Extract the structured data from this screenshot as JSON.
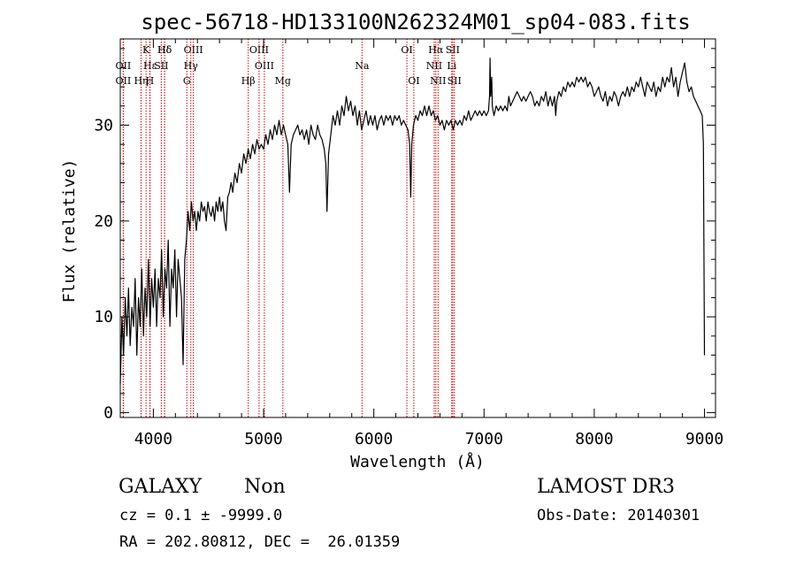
{
  "chart_data": {
    "type": "line",
    "title": "spec-56718-HD133100N262324M01_sp04-083.fits",
    "xlabel": "Wavelength (Å)",
    "ylabel": "Flux (relative)",
    "xlim": [
      3700,
      9100
    ],
    "ylim": [
      -0.5,
      39
    ],
    "xticks": [
      4000,
      5000,
      6000,
      7000,
      8000,
      9000
    ],
    "yticks": [
      0,
      10,
      20,
      30
    ],
    "grid": false,
    "series": [
      {
        "points": [
          [
            3700,
            3
          ],
          [
            3715,
            10
          ],
          [
            3730,
            6
          ],
          [
            3745,
            12
          ],
          [
            3760,
            8
          ],
          [
            3775,
            13
          ],
          [
            3790,
            7
          ],
          [
            3805,
            11
          ],
          [
            3820,
            9
          ],
          [
            3835,
            14
          ],
          [
            3850,
            6
          ],
          [
            3865,
            12
          ],
          [
            3880,
            9
          ],
          [
            3895,
            15
          ],
          [
            3910,
            8
          ],
          [
            3925,
            13
          ],
          [
            3940,
            10
          ],
          [
            3955,
            16
          ],
          [
            3970,
            9
          ],
          [
            3985,
            14
          ],
          [
            4000,
            11
          ],
          [
            4015,
            15
          ],
          [
            4030,
            9
          ],
          [
            4045,
            14
          ],
          [
            4060,
            12
          ],
          [
            4075,
            17
          ],
          [
            4090,
            10
          ],
          [
            4105,
            15
          ],
          [
            4120,
            13
          ],
          [
            4135,
            18
          ],
          [
            4150,
            9
          ],
          [
            4165,
            15
          ],
          [
            4180,
            13
          ],
          [
            4195,
            17
          ],
          [
            4210,
            10
          ],
          [
            4225,
            16
          ],
          [
            4240,
            14
          ],
          [
            4255,
            12
          ],
          [
            4270,
            5
          ],
          [
            4285,
            16
          ],
          [
            4300,
            18
          ],
          [
            4315,
            21
          ],
          [
            4330,
            19
          ],
          [
            4345,
            22
          ],
          [
            4360,
            20
          ],
          [
            4375,
            21
          ],
          [
            4390,
            19
          ],
          [
            4405,
            21
          ],
          [
            4420,
            20
          ],
          [
            4435,
            22
          ],
          [
            4450,
            21
          ],
          [
            4465,
            21.5
          ],
          [
            4480,
            20
          ],
          [
            4495,
            22
          ],
          [
            4510,
            21
          ],
          [
            4525,
            20.5
          ],
          [
            4540,
            21.5
          ],
          [
            4555,
            20
          ],
          [
            4570,
            22
          ],
          [
            4585,
            21
          ],
          [
            4600,
            22.5
          ],
          [
            4615,
            21
          ],
          [
            4630,
            22
          ],
          [
            4645,
            20
          ],
          [
            4660,
            19
          ],
          [
            4675,
            22.5
          ],
          [
            4690,
            23
          ],
          [
            4705,
            24
          ],
          [
            4720,
            23
          ],
          [
            4740,
            25
          ],
          [
            4760,
            24
          ],
          [
            4780,
            26
          ],
          [
            4800,
            25
          ],
          [
            4820,
            27
          ],
          [
            4840,
            26
          ],
          [
            4860,
            27.5
          ],
          [
            4880,
            26.5
          ],
          [
            4900,
            28
          ],
          [
            4920,
            27
          ],
          [
            4940,
            28.5
          ],
          [
            4960,
            27.5
          ],
          [
            4980,
            28
          ],
          [
            5000,
            27.5
          ],
          [
            5020,
            29
          ],
          [
            5040,
            28
          ],
          [
            5060,
            29.5
          ],
          [
            5080,
            28.5
          ],
          [
            5100,
            30
          ],
          [
            5120,
            29
          ],
          [
            5140,
            30.5
          ],
          [
            5160,
            29
          ],
          [
            5180,
            30
          ],
          [
            5200,
            29
          ],
          [
            5220,
            28
          ],
          [
            5235,
            23
          ],
          [
            5250,
            28
          ],
          [
            5270,
            29
          ],
          [
            5290,
            29.5
          ],
          [
            5310,
            30
          ],
          [
            5330,
            29
          ],
          [
            5350,
            29.5
          ],
          [
            5370,
            28.5
          ],
          [
            5390,
            29.5
          ],
          [
            5410,
            28
          ],
          [
            5430,
            30
          ],
          [
            5450,
            29
          ],
          [
            5470,
            28.5
          ],
          [
            5490,
            30
          ],
          [
            5510,
            29
          ],
          [
            5530,
            28.5
          ],
          [
            5550,
            27.5
          ],
          [
            5565,
            26
          ],
          [
            5575,
            21
          ],
          [
            5590,
            27
          ],
          [
            5610,
            29
          ],
          [
            5630,
            31
          ],
          [
            5650,
            30
          ],
          [
            5670,
            31.5
          ],
          [
            5690,
            30
          ],
          [
            5710,
            32
          ],
          [
            5730,
            31
          ],
          [
            5750,
            33
          ],
          [
            5770,
            31.5
          ],
          [
            5790,
            32.5
          ],
          [
            5810,
            31
          ],
          [
            5830,
            32
          ],
          [
            5850,
            30
          ],
          [
            5870,
            31.5
          ],
          [
            5890,
            29.5
          ],
          [
            5910,
            30.5
          ],
          [
            5930,
            31.5
          ],
          [
            5950,
            30
          ],
          [
            5970,
            31
          ],
          [
            5990,
            30
          ],
          [
            6010,
            31
          ],
          [
            6030,
            29.5
          ],
          [
            6050,
            30.5
          ],
          [
            6070,
            31
          ],
          [
            6090,
            30
          ],
          [
            6110,
            31
          ],
          [
            6130,
            30.5
          ],
          [
            6150,
            31
          ],
          [
            6170,
            30
          ],
          [
            6190,
            31
          ],
          [
            6210,
            30.5
          ],
          [
            6230,
            31
          ],
          [
            6250,
            30
          ],
          [
            6270,
            30.5
          ],
          [
            6290,
            30
          ],
          [
            6310,
            29.5
          ],
          [
            6325,
            28
          ],
          [
            6335,
            22.5
          ],
          [
            6345,
            28
          ],
          [
            6360,
            30
          ],
          [
            6380,
            31
          ],
          [
            6400,
            30.5
          ],
          [
            6420,
            31.5
          ],
          [
            6440,
            31
          ],
          [
            6460,
            32
          ],
          [
            6480,
            31
          ],
          [
            6500,
            32
          ],
          [
            6520,
            31
          ],
          [
            6540,
            31.5
          ],
          [
            6560,
            30.5
          ],
          [
            6580,
            31
          ],
          [
            6600,
            30
          ],
          [
            6620,
            30.5
          ],
          [
            6640,
            29.5
          ],
          [
            6660,
            30.5
          ],
          [
            6680,
            30
          ],
          [
            6700,
            30.5
          ],
          [
            6720,
            29.5
          ],
          [
            6740,
            30.5
          ],
          [
            6760,
            30
          ],
          [
            6780,
            30.5
          ],
          [
            6800,
            30
          ],
          [
            6820,
            31
          ],
          [
            6840,
            30.5
          ],
          [
            6860,
            31.5
          ],
          [
            6880,
            30.5
          ],
          [
            6900,
            31
          ],
          [
            6920,
            31.5
          ],
          [
            6940,
            31
          ],
          [
            6960,
            31.5
          ],
          [
            6980,
            31
          ],
          [
            7000,
            31.5
          ],
          [
            7020,
            31
          ],
          [
            7040,
            31.5
          ],
          [
            7050,
            33
          ],
          [
            7055,
            37
          ],
          [
            7060,
            33
          ],
          [
            7070,
            35
          ],
          [
            7075,
            32
          ],
          [
            7090,
            31
          ],
          [
            7110,
            32
          ],
          [
            7130,
            31.5
          ],
          [
            7150,
            32
          ],
          [
            7170,
            31.5
          ],
          [
            7190,
            32
          ],
          [
            7210,
            31.5
          ],
          [
            7225,
            33
          ],
          [
            7240,
            32
          ],
          [
            7260,
            32.5
          ],
          [
            7280,
            33
          ],
          [
            7300,
            33.5
          ],
          [
            7320,
            33
          ],
          [
            7340,
            32.5
          ],
          [
            7360,
            33
          ],
          [
            7380,
            32.5
          ],
          [
            7400,
            33
          ],
          [
            7420,
            33.5
          ],
          [
            7440,
            33
          ],
          [
            7460,
            32
          ],
          [
            7480,
            32.5
          ],
          [
            7500,
            32
          ],
          [
            7520,
            33
          ],
          [
            7540,
            32.5
          ],
          [
            7560,
            33.5
          ],
          [
            7580,
            32
          ],
          [
            7600,
            33
          ],
          [
            7620,
            32
          ],
          [
            7640,
            33
          ],
          [
            7650,
            31
          ],
          [
            7660,
            32.5
          ],
          [
            7680,
            33.5
          ],
          [
            7700,
            33
          ],
          [
            7720,
            34
          ],
          [
            7740,
            33.5
          ],
          [
            7760,
            34.5
          ],
          [
            7780,
            34
          ],
          [
            7800,
            34.5
          ],
          [
            7820,
            34
          ],
          [
            7840,
            35
          ],
          [
            7860,
            34.5
          ],
          [
            7880,
            35
          ],
          [
            7900,
            34.5
          ],
          [
            7920,
            35
          ],
          [
            7940,
            34
          ],
          [
            7960,
            34.5
          ],
          [
            7980,
            34
          ],
          [
            8000,
            33
          ],
          [
            8020,
            33.5
          ],
          [
            8040,
            34
          ],
          [
            8060,
            33
          ],
          [
            8080,
            32.5
          ],
          [
            8100,
            33.5
          ],
          [
            8120,
            32
          ],
          [
            8140,
            33
          ],
          [
            8160,
            32.5
          ],
          [
            8180,
            33.5
          ],
          [
            8200,
            33
          ],
          [
            8220,
            32
          ],
          [
            8240,
            33
          ],
          [
            8260,
            33.5
          ],
          [
            8280,
            33
          ],
          [
            8300,
            34
          ],
          [
            8320,
            33
          ],
          [
            8340,
            34
          ],
          [
            8360,
            33.5
          ],
          [
            8380,
            34.5
          ],
          [
            8400,
            34
          ],
          [
            8420,
            35
          ],
          [
            8440,
            34
          ],
          [
            8460,
            33
          ],
          [
            8480,
            34.5
          ],
          [
            8500,
            34
          ],
          [
            8520,
            33.5
          ],
          [
            8540,
            34.5
          ],
          [
            8560,
            33
          ],
          [
            8580,
            34
          ],
          [
            8600,
            33.5
          ],
          [
            8620,
            35
          ],
          [
            8640,
            34
          ],
          [
            8660,
            35
          ],
          [
            8680,
            34.5
          ],
          [
            8700,
            36
          ],
          [
            8720,
            34
          ],
          [
            8740,
            35
          ],
          [
            8760,
            33
          ],
          [
            8780,
            34.5
          ],
          [
            8800,
            35.5
          ],
          [
            8820,
            36.5
          ],
          [
            8840,
            34.5
          ],
          [
            8860,
            33.5
          ],
          [
            8880,
            34
          ],
          [
            8900,
            33
          ],
          [
            8920,
            32.5
          ],
          [
            8940,
            32
          ],
          [
            8960,
            31.5
          ],
          [
            8980,
            31
          ],
          [
            8990,
            28
          ],
          [
            9000,
            6
          ]
        ]
      }
    ],
    "lines": [
      {
        "x": 3727,
        "label": "OII",
        "row": 2
      },
      {
        "x": 3727,
        "label": "OII",
        "row": 3
      },
      {
        "x": 4102,
        "label": "Hδ",
        "row": 1
      },
      {
        "x": 3970,
        "label": "Hε",
        "row": 2
      },
      {
        "x": 3889,
        "label": "Hη",
        "row": 3
      },
      {
        "x": 3934,
        "label": "K",
        "row": 1
      },
      {
        "x": 3968,
        "label": "H",
        "row": 3
      },
      {
        "x": 4102,
        "label": "Hδ",
        "row": 1
      },
      {
        "x": 4072,
        "label": "SII",
        "row": 2
      },
      {
        "x": 4363,
        "label": "OIII",
        "row": 1
      },
      {
        "x": 4340,
        "label": "Hγ",
        "row": 2
      },
      {
        "x": 4304,
        "label": "G",
        "row": 3
      },
      {
        "x": 4861,
        "label": "Hβ",
        "row": 3
      },
      {
        "x": 4959,
        "label": "OIII",
        "row": 1
      },
      {
        "x": 5007,
        "label": "OIII",
        "row": 2
      },
      {
        "x": 5175,
        "label": "Mg",
        "row": 3
      },
      {
        "x": 5893,
        "label": "Na",
        "row": 2
      },
      {
        "x": 6300,
        "label": "OI",
        "row": 1
      },
      {
        "x": 6363,
        "label": "OI",
        "row": 3
      },
      {
        "x": 6563,
        "label": "Hα",
        "row": 1
      },
      {
        "x": 6548,
        "label": "NII",
        "row": 2
      },
      {
        "x": 6583,
        "label": "NII",
        "row": 3
      },
      {
        "x": 6716,
        "label": "SII",
        "row": 1
      },
      {
        "x": 6707,
        "label": "Li",
        "row": 2
      },
      {
        "x": 6731,
        "label": "SII",
        "row": 3
      }
    ],
    "line_color": "#cc0000",
    "data_color": "#000000"
  },
  "info": {
    "classification": "GALAXY",
    "subclass": "Non",
    "survey": "LAMOST DR3",
    "cz": "cz = 0.1 ± -9999.0",
    "obs_date": "Obs-Date: 20140301",
    "coords": "RA = 202.80812, DEC =  26.01359"
  }
}
